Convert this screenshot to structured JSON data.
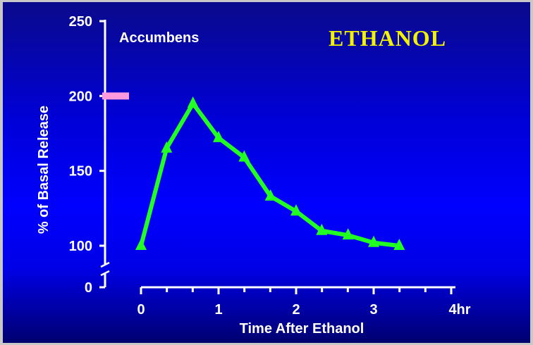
{
  "chart_data": {
    "type": "line",
    "title": "ETHANOL",
    "subtitle": "Accumbens",
    "xlabel": "Time After Ethanol",
    "ylabel": "% of Basal Release",
    "x_ticks": [
      "0",
      "1",
      "2",
      "3",
      "4hr"
    ],
    "y_ticks": [
      "0",
      "100",
      "150",
      "200",
      "250"
    ],
    "xlim": [
      0,
      4
    ],
    "ylim": [
      100,
      250
    ],
    "y_axis_break": true,
    "grid": false,
    "baseline_marker_y": 200,
    "series": [
      {
        "x": [
          0,
          0.33,
          0.67,
          1.0,
          1.33,
          1.67,
          2.0,
          2.33,
          2.67,
          3.0,
          3.33
        ],
        "values": [
          100,
          165,
          195,
          172,
          159,
          133,
          123,
          110,
          107,
          102,
          100
        ],
        "color": "#22ff22",
        "marker": "triangle"
      }
    ],
    "colors": {
      "background": "#0000e0",
      "title": "#f2f200",
      "text": "#ffffff",
      "line": "#22ff22",
      "baseline_marker": "#ff99dd"
    }
  }
}
